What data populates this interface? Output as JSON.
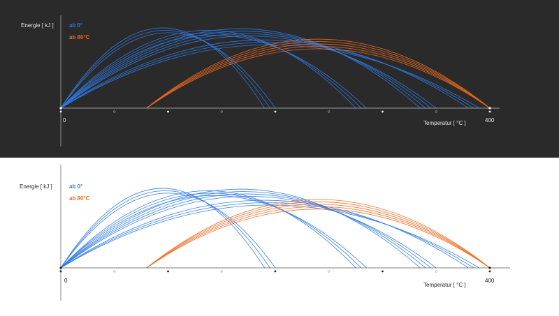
{
  "colors": {
    "series_blue": "#2e7ae6",
    "series_orange": "#f06a1e",
    "dark_bg": "#2a2a2a",
    "light_bg": "#ffffff",
    "dark_text": "#e6e6e6",
    "light_text": "#222222"
  },
  "chart_data": [
    {
      "type": "line",
      "theme": "dark",
      "ylabel": "Energie [ kJ ]",
      "xlabel": "Temperatur [ °C ]",
      "xlim": [
        0,
        400
      ],
      "x_ticks": [
        "0",
        "400"
      ],
      "grid": false,
      "legend_position": "top-left",
      "series": [
        {
          "name": "ab 0°",
          "color_key": "series_blue",
          "curves": [
            {
              "start": 0,
              "end": 190,
              "peak": 1.0
            },
            {
              "start": 0,
              "end": 195,
              "peak": 0.97
            },
            {
              "start": 0,
              "end": 200,
              "peak": 0.94
            },
            {
              "start": 0,
              "end": 275,
              "peak": 0.97
            },
            {
              "start": 0,
              "end": 280,
              "peak": 0.94
            },
            {
              "start": 0,
              "end": 285,
              "peak": 0.91
            },
            {
              "start": 0,
              "end": 335,
              "peak": 0.99
            },
            {
              "start": 0,
              "end": 340,
              "peak": 0.96
            },
            {
              "start": 0,
              "end": 345,
              "peak": 0.93
            },
            {
              "start": 0,
              "end": 350,
              "peak": 0.9
            },
            {
              "start": 0,
              "end": 380,
              "peak": 0.85
            },
            {
              "start": 0,
              "end": 385,
              "peak": 0.82
            },
            {
              "start": 0,
              "end": 390,
              "peak": 0.79
            }
          ]
        },
        {
          "name": "ab 80°C",
          "color_key": "series_orange",
          "curves": [
            {
              "start": 80,
              "end": 400,
              "peak": 0.86
            },
            {
              "start": 80,
              "end": 400,
              "peak": 0.83
            },
            {
              "start": 80,
              "end": 400,
              "peak": 0.8
            },
            {
              "start": 80,
              "end": 400,
              "peak": 0.77
            },
            {
              "start": 80,
              "end": 400,
              "peak": 0.74
            }
          ]
        }
      ]
    },
    {
      "type": "line",
      "theme": "light",
      "ylabel": "Energie [ kJ ]",
      "xlabel": "Temperatur [ °C ]",
      "xlim": [
        0,
        400
      ],
      "x_ticks": [
        "0",
        "400"
      ],
      "grid": false,
      "legend_position": "top-left",
      "series": [
        {
          "name": "ab 0°",
          "color_key": "series_blue",
          "curves": [
            {
              "start": 0,
              "end": 190,
              "peak": 1.0
            },
            {
              "start": 0,
              "end": 195,
              "peak": 0.97
            },
            {
              "start": 0,
              "end": 200,
              "peak": 0.94
            },
            {
              "start": 0,
              "end": 275,
              "peak": 0.97
            },
            {
              "start": 0,
              "end": 280,
              "peak": 0.94
            },
            {
              "start": 0,
              "end": 285,
              "peak": 0.91
            },
            {
              "start": 0,
              "end": 335,
              "peak": 0.99
            },
            {
              "start": 0,
              "end": 340,
              "peak": 0.96
            },
            {
              "start": 0,
              "end": 345,
              "peak": 0.93
            },
            {
              "start": 0,
              "end": 350,
              "peak": 0.9
            },
            {
              "start": 0,
              "end": 380,
              "peak": 0.85
            },
            {
              "start": 0,
              "end": 385,
              "peak": 0.82
            },
            {
              "start": 0,
              "end": 390,
              "peak": 0.79
            }
          ]
        },
        {
          "name": "ab 80°C",
          "color_key": "series_orange",
          "curves": [
            {
              "start": 80,
              "end": 400,
              "peak": 0.86
            },
            {
              "start": 80,
              "end": 400,
              "peak": 0.83
            },
            {
              "start": 80,
              "end": 400,
              "peak": 0.8
            },
            {
              "start": 80,
              "end": 400,
              "peak": 0.77
            },
            {
              "start": 80,
              "end": 400,
              "peak": 0.74
            }
          ]
        }
      ]
    }
  ]
}
